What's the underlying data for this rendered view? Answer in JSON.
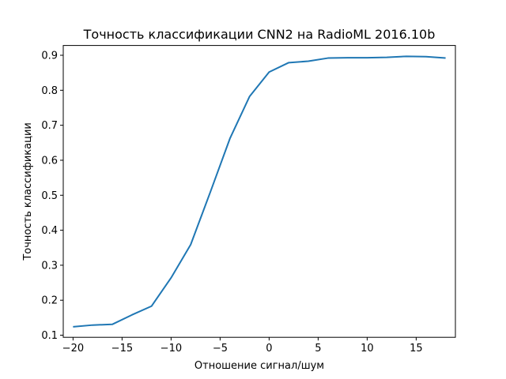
{
  "chart_data": {
    "type": "line",
    "title": "Точность классификации CNN2 на RadioML 2016.10b",
    "xlabel": "Отношение сигнал/шум",
    "ylabel": "Точность классификации",
    "xlim": [
      -21,
      19
    ],
    "ylim": [
      0.094,
      0.928
    ],
    "x_ticks": [
      -20,
      -15,
      -10,
      -5,
      0,
      5,
      10,
      15
    ],
    "x_tick_labels": [
      "−20",
      "−15",
      "−10",
      "−5",
      "0",
      "5",
      "10",
      "15"
    ],
    "y_ticks": [
      0.1,
      0.2,
      0.3,
      0.4,
      0.5,
      0.6,
      0.7,
      0.8,
      0.9
    ],
    "y_tick_labels": [
      "0.1",
      "0.2",
      "0.3",
      "0.4",
      "0.5",
      "0.6",
      "0.7",
      "0.8",
      "0.9"
    ],
    "grid": false,
    "series": [
      {
        "color": "#1f77b4",
        "x": [
          -20,
          -18,
          -16,
          -14,
          -12,
          -10,
          -8,
          -6,
          -4,
          -2,
          0,
          2,
          4,
          6,
          8,
          10,
          12,
          14,
          16,
          18
        ],
        "y": [
          0.124,
          0.129,
          0.131,
          0.158,
          0.183,
          0.264,
          0.359,
          0.509,
          0.662,
          0.782,
          0.852,
          0.879,
          0.883,
          0.892,
          0.893,
          0.893,
          0.894,
          0.897,
          0.896,
          0.892
        ]
      }
    ]
  }
}
